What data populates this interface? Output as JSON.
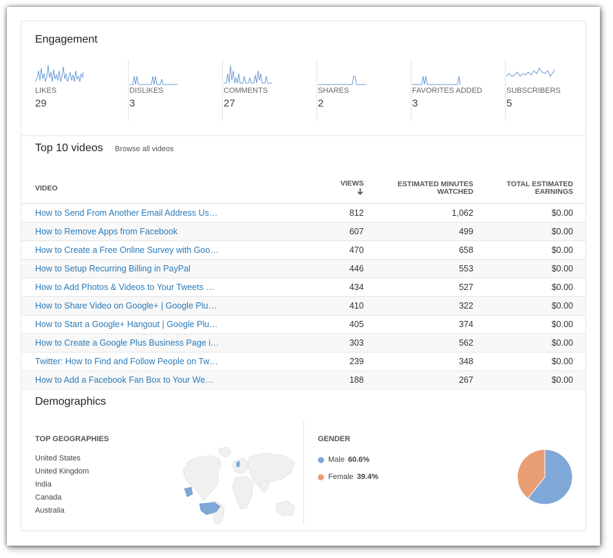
{
  "engagement": {
    "title": "Engagement",
    "metrics": [
      {
        "label": "LIKES",
        "value": "29"
      },
      {
        "label": "DISLIKES",
        "value": "3"
      },
      {
        "label": "COMMENTS",
        "value": "27"
      },
      {
        "label": "SHARES",
        "value": "2"
      },
      {
        "label": "FAVORITES ADDED",
        "value": "3"
      },
      {
        "label": "SUBSCRIBERS",
        "value": "5"
      }
    ]
  },
  "top_videos": {
    "title": "Top 10 videos",
    "browse_label": "Browse all videos",
    "headers": {
      "video": "VIDEO",
      "views": "VIEWS",
      "minutes_1": "ESTIMATED MINUTES",
      "minutes_2": "WATCHED",
      "earnings_1": "TOTAL ESTIMATED",
      "earnings_2": "EARNINGS"
    },
    "rows": [
      {
        "title": "How to Send From Another Email Address Us…",
        "views": "812",
        "minutes": "1,062",
        "earnings": "$0.00"
      },
      {
        "title": "How to Remove Apps from Facebook",
        "views": "607",
        "minutes": "499",
        "earnings": "$0.00"
      },
      {
        "title": "How to Create a Free Online Survey with Goo…",
        "views": "470",
        "minutes": "658",
        "earnings": "$0.00"
      },
      {
        "title": "How to Setup Recurring Billing in PayPal",
        "views": "446",
        "minutes": "553",
        "earnings": "$0.00"
      },
      {
        "title": "How to Add Photos & Videos to Your Tweets …",
        "views": "434",
        "minutes": "527",
        "earnings": "$0.00"
      },
      {
        "title": "How to Share Video on Google+ | Google Plu…",
        "views": "410",
        "minutes": "322",
        "earnings": "$0.00"
      },
      {
        "title": "How to Start a Google+ Hangout | Google Plu…",
        "views": "405",
        "minutes": "374",
        "earnings": "$0.00"
      },
      {
        "title": "How to Create a Google Plus Business Page i…",
        "views": "303",
        "minutes": "562",
        "earnings": "$0.00"
      },
      {
        "title": "Twitter: How to Find and Follow People on Tw…",
        "views": "239",
        "minutes": "348",
        "earnings": "$0.00"
      },
      {
        "title": "How to Add a Facebook Fan Box to Your We…",
        "views": "188",
        "minutes": "267",
        "earnings": "$0.00"
      }
    ]
  },
  "demographics": {
    "title": "Demographics",
    "geographies": {
      "heading": "TOP GEOGRAPHIES",
      "items": [
        "United States",
        "United Kingdom",
        "India",
        "Canada",
        "Australia"
      ]
    },
    "gender": {
      "heading": "GENDER",
      "items": [
        {
          "label": "Male",
          "pct": "60.6%",
          "value": 60.6,
          "color": "#7fa7d8"
        },
        {
          "label": "Female",
          "pct": "39.4%",
          "value": 39.4,
          "color": "#e99e76"
        }
      ]
    }
  },
  "colors": {
    "link": "#2a7ab8",
    "sparkline": "#6b9bd6",
    "map_highlight": "#7fa7d8"
  }
}
